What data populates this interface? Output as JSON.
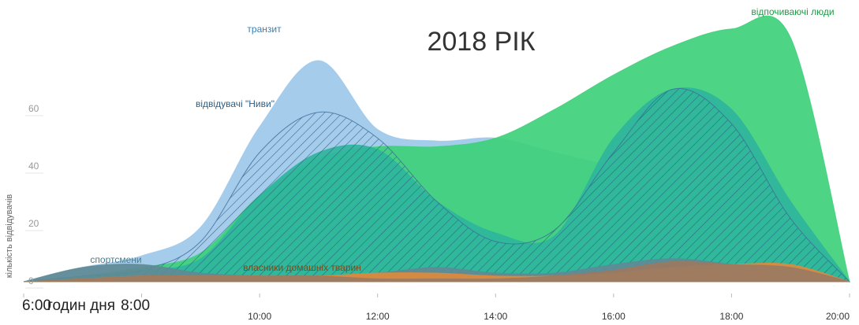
{
  "chart_data": {
    "type": "area",
    "title": "2018 РІК",
    "y_label": "кількість відвідувачів",
    "x_label": "годин дня",
    "x": [
      6,
      7,
      8,
      9,
      10,
      11,
      12,
      13,
      14,
      15,
      16,
      17,
      18,
      19,
      20
    ],
    "xlim": [
      6,
      20
    ],
    "xticks": [
      {
        "value": 6,
        "label": "6:00"
      },
      {
        "value": 8,
        "label": "8:00"
      },
      {
        "value": 10,
        "label": "10:00"
      },
      {
        "value": 12,
        "label": "12:00"
      },
      {
        "value": 14,
        "label": "14:00"
      },
      {
        "value": 16,
        "label": "16:00"
      },
      {
        "value": 18,
        "label": "18:00"
      },
      {
        "value": 20,
        "label": "20:00"
      }
    ],
    "ylim": [
      0,
      90
    ],
    "yticks": [
      0,
      20,
      40,
      60
    ],
    "series": [
      {
        "name": "транзит",
        "color": "#9ec8ea",
        "values": [
          0,
          5,
          9,
          19,
          54,
          77,
          53,
          49,
          50,
          45,
          40,
          35,
          30,
          20,
          0
        ]
      },
      {
        "name": "відпочиваючі люди",
        "color": "#3ed07a",
        "values": [
          0,
          2,
          5,
          10,
          30,
          43,
          47,
          47,
          50,
          60,
          72,
          82,
          88,
          85,
          0
        ]
      },
      {
        "color": "#2fb59c",
        "values": [
          0,
          2,
          4,
          8,
          30,
          45,
          46,
          28,
          17,
          16,
          50,
          67,
          60,
          28,
          0
        ]
      },
      {
        "name": "відвідувачі \"Ниви\"",
        "color": "#3c6e9a",
        "hatch": true,
        "values": [
          0,
          2,
          4,
          14,
          45,
          59,
          50,
          28,
          14,
          18,
          45,
          67,
          55,
          22,
          0
        ]
      },
      {
        "name": "спортсмени",
        "color": "#5f8a96",
        "values": [
          0,
          5,
          6,
          3,
          2,
          2,
          3,
          5,
          3,
          3,
          6,
          8,
          6,
          3,
          0
        ]
      },
      {
        "name": "власники домашніх тварин",
        "color": "#e08a3c",
        "values": [
          0,
          1,
          2,
          2,
          2,
          2,
          3,
          3,
          2,
          2,
          3,
          5,
          6,
          6,
          0
        ]
      },
      {
        "color": "#9a7a62",
        "values": [
          0,
          1,
          2,
          2,
          2,
          2,
          1,
          1,
          1,
          2,
          4,
          7,
          6,
          5,
          0
        ]
      }
    ]
  }
}
